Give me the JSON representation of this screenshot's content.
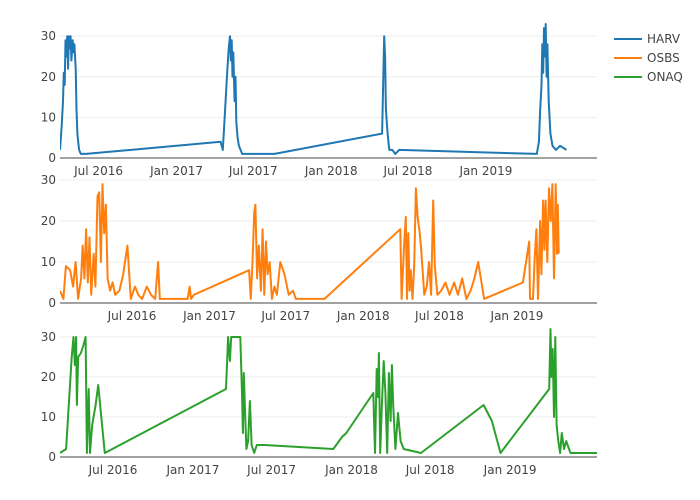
{
  "chart_data": [
    {
      "type": "line",
      "panel": "top",
      "series_name": "HARV",
      "color": "#1f77b4",
      "ylim": [
        0,
        33
      ],
      "yticks": [
        0,
        10,
        20,
        30
      ],
      "xlim": [
        "2016-04-01",
        "2019-09-20"
      ],
      "xticks": [
        {
          "date": "2016-07-01",
          "label": "Jul 2016"
        },
        {
          "date": "2017-01-01",
          "label": "Jan 2017"
        },
        {
          "date": "2017-07-01",
          "label": "Jul 2017"
        },
        {
          "date": "2018-01-01",
          "label": "Jan 2018"
        },
        {
          "date": "2018-07-01",
          "label": "Jul 2018"
        },
        {
          "date": "2019-01-01",
          "label": "Jan 2019"
        }
      ],
      "points": [
        [
          "2016-04-01",
          2
        ],
        [
          "2016-04-05",
          8
        ],
        [
          "2016-04-08",
          14
        ],
        [
          "2016-04-10",
          21
        ],
        [
          "2016-04-12",
          18
        ],
        [
          "2016-04-14",
          29
        ],
        [
          "2016-04-16",
          25
        ],
        [
          "2016-04-18",
          30
        ],
        [
          "2016-04-20",
          22
        ],
        [
          "2016-04-22",
          30
        ],
        [
          "2016-04-24",
          27
        ],
        [
          "2016-04-26",
          30
        ],
        [
          "2016-04-28",
          24
        ],
        [
          "2016-05-01",
          29
        ],
        [
          "2016-05-03",
          26
        ],
        [
          "2016-05-05",
          28
        ],
        [
          "2016-05-08",
          22
        ],
        [
          "2016-05-10",
          12
        ],
        [
          "2016-05-12",
          6
        ],
        [
          "2016-05-14",
          4
        ],
        [
          "2016-05-16",
          2
        ],
        [
          "2016-05-20",
          1
        ],
        [
          "2016-06-01",
          1
        ],
        [
          "2017-04-15",
          4
        ],
        [
          "2017-04-20",
          2
        ],
        [
          "2017-04-25",
          11
        ],
        [
          "2017-05-01",
          22
        ],
        [
          "2017-05-04",
          27
        ],
        [
          "2017-05-07",
          30
        ],
        [
          "2017-05-09",
          24
        ],
        [
          "2017-05-11",
          29
        ],
        [
          "2017-05-13",
          20
        ],
        [
          "2017-05-15",
          26
        ],
        [
          "2017-05-18",
          14
        ],
        [
          "2017-05-20",
          20
        ],
        [
          "2017-05-22",
          9
        ],
        [
          "2017-05-25",
          5
        ],
        [
          "2017-05-28",
          3
        ],
        [
          "2017-06-05",
          1
        ],
        [
          "2017-08-20",
          1
        ],
        [
          "2018-05-01",
          6
        ],
        [
          "2018-05-04",
          21
        ],
        [
          "2018-05-06",
          30
        ],
        [
          "2018-05-08",
          25
        ],
        [
          "2018-05-10",
          12
        ],
        [
          "2018-05-14",
          6
        ],
        [
          "2018-05-18",
          2
        ],
        [
          "2018-05-25",
          2
        ],
        [
          "2018-06-01",
          1
        ],
        [
          "2018-06-10",
          2
        ],
        [
          "2019-05-01",
          1
        ],
        [
          "2019-05-06",
          4
        ],
        [
          "2019-05-09",
          12
        ],
        [
          "2019-05-12",
          18
        ],
        [
          "2019-05-14",
          28
        ],
        [
          "2019-05-16",
          21
        ],
        [
          "2019-05-18",
          32
        ],
        [
          "2019-05-20",
          25
        ],
        [
          "2019-05-22",
          33
        ],
        [
          "2019-05-24",
          20
        ],
        [
          "2019-05-26",
          28
        ],
        [
          "2019-05-29",
          14
        ],
        [
          "2019-06-02",
          6
        ],
        [
          "2019-06-07",
          3
        ],
        [
          "2019-06-15",
          2
        ],
        [
          "2019-06-25",
          3
        ],
        [
          "2019-07-10",
          2
        ]
      ]
    },
    {
      "type": "line",
      "panel": "middle",
      "series_name": "OSBS",
      "color": "#ff7f0e",
      "ylim": [
        0,
        30
      ],
      "yticks": [
        0,
        10,
        20,
        30
      ],
      "xlim": [
        "2016-01-12",
        "2019-07-10"
      ],
      "xticks": [
        {
          "date": "2016-07-01",
          "label": "Jul 2016"
        },
        {
          "date": "2017-01-01",
          "label": "Jan 2017"
        },
        {
          "date": "2017-07-01",
          "label": "Jul 2017"
        },
        {
          "date": "2018-01-01",
          "label": "Jan 2018"
        },
        {
          "date": "2018-07-01",
          "label": "Jul 2018"
        },
        {
          "date": "2019-01-01",
          "label": "Jan 2019"
        }
      ],
      "points": [
        [
          "2016-01-12",
          3
        ],
        [
          "2016-01-20",
          1
        ],
        [
          "2016-01-26",
          9
        ],
        [
          "2016-02-05",
          8
        ],
        [
          "2016-02-12",
          4
        ],
        [
          "2016-02-18",
          10
        ],
        [
          "2016-02-24",
          1
        ],
        [
          "2016-03-02",
          6
        ],
        [
          "2016-03-06",
          14
        ],
        [
          "2016-03-10",
          6
        ],
        [
          "2016-03-14",
          18
        ],
        [
          "2016-03-18",
          5
        ],
        [
          "2016-03-22",
          16
        ],
        [
          "2016-03-26",
          2
        ],
        [
          "2016-04-01",
          12
        ],
        [
          "2016-04-05",
          4
        ],
        [
          "2016-04-10",
          26
        ],
        [
          "2016-04-14",
          27
        ],
        [
          "2016-04-18",
          10
        ],
        [
          "2016-04-22",
          29
        ],
        [
          "2016-04-26",
          17
        ],
        [
          "2016-04-30",
          24
        ],
        [
          "2016-05-04",
          6
        ],
        [
          "2016-05-10",
          3
        ],
        [
          "2016-05-16",
          5
        ],
        [
          "2016-05-22",
          2
        ],
        [
          "2016-06-01",
          3
        ],
        [
          "2016-06-10",
          7
        ],
        [
          "2016-06-20",
          14
        ],
        [
          "2016-06-28",
          1
        ],
        [
          "2016-07-08",
          4
        ],
        [
          "2016-07-16",
          2
        ],
        [
          "2016-07-25",
          1
        ],
        [
          "2016-08-05",
          4
        ],
        [
          "2016-08-15",
          2
        ],
        [
          "2016-08-25",
          1
        ],
        [
          "2016-09-01",
          10
        ],
        [
          "2016-09-05",
          1
        ],
        [
          "2016-10-01",
          1
        ],
        [
          "2016-11-10",
          1
        ],
        [
          "2016-11-15",
          4
        ],
        [
          "2016-11-18",
          1
        ],
        [
          "2016-11-25",
          2
        ],
        [
          "2017-04-05",
          8
        ],
        [
          "2017-04-09",
          1
        ],
        [
          "2017-04-13",
          10
        ],
        [
          "2017-04-17",
          22
        ],
        [
          "2017-04-20",
          24
        ],
        [
          "2017-04-24",
          6
        ],
        [
          "2017-04-28",
          14
        ],
        [
          "2017-05-03",
          3
        ],
        [
          "2017-05-07",
          18
        ],
        [
          "2017-05-11",
          2
        ],
        [
          "2017-05-15",
          15
        ],
        [
          "2017-05-19",
          7
        ],
        [
          "2017-05-24",
          10
        ],
        [
          "2017-05-29",
          1
        ],
        [
          "2017-06-04",
          4
        ],
        [
          "2017-06-10",
          2
        ],
        [
          "2017-06-18",
          10
        ],
        [
          "2017-06-28",
          7
        ],
        [
          "2017-07-08",
          2
        ],
        [
          "2017-07-18",
          3
        ],
        [
          "2017-07-25",
          1
        ],
        [
          "2017-08-15",
          1
        ],
        [
          "2017-10-01",
          1
        ],
        [
          "2018-03-30",
          18
        ],
        [
          "2018-04-02",
          1
        ],
        [
          "2018-04-08",
          14
        ],
        [
          "2018-04-12",
          21
        ],
        [
          "2018-04-15",
          1
        ],
        [
          "2018-04-18",
          17
        ],
        [
          "2018-04-21",
          3
        ],
        [
          "2018-04-24",
          8
        ],
        [
          "2018-04-28",
          1
        ],
        [
          "2018-05-02",
          9
        ],
        [
          "2018-05-06",
          28
        ],
        [
          "2018-05-10",
          21
        ],
        [
          "2018-05-14",
          18
        ],
        [
          "2018-05-18",
          14
        ],
        [
          "2018-05-22",
          8
        ],
        [
          "2018-05-26",
          2
        ],
        [
          "2018-06-01",
          4
        ],
        [
          "2018-06-06",
          10
        ],
        [
          "2018-06-11",
          2
        ],
        [
          "2018-06-16",
          25
        ],
        [
          "2018-06-20",
          9
        ],
        [
          "2018-06-26",
          2
        ],
        [
          "2018-07-05",
          3
        ],
        [
          "2018-07-15",
          5
        ],
        [
          "2018-07-25",
          2
        ],
        [
          "2018-08-05",
          5
        ],
        [
          "2018-08-14",
          2
        ],
        [
          "2018-08-24",
          6
        ],
        [
          "2018-09-03",
          1
        ],
        [
          "2018-09-13",
          3
        ],
        [
          "2018-09-22",
          6
        ],
        [
          "2018-10-01",
          10
        ],
        [
          "2018-10-15",
          1
        ],
        [
          "2019-01-15",
          5
        ],
        [
          "2019-01-30",
          15
        ],
        [
          "2019-02-01",
          1
        ],
        [
          "2019-02-08",
          1
        ],
        [
          "2019-02-12",
          11
        ],
        [
          "2019-02-16",
          18
        ],
        [
          "2019-02-20",
          1
        ],
        [
          "2019-02-25",
          20
        ],
        [
          "2019-02-28",
          7
        ],
        [
          "2019-03-04",
          25
        ],
        [
          "2019-03-07",
          13
        ],
        [
          "2019-03-10",
          25
        ],
        [
          "2019-03-14",
          10
        ],
        [
          "2019-03-18",
          28
        ],
        [
          "2019-03-22",
          20
        ],
        [
          "2019-03-26",
          29
        ],
        [
          "2019-03-30",
          6
        ],
        [
          "2019-04-03",
          29
        ],
        [
          "2019-04-06",
          12
        ],
        [
          "2019-04-08",
          24
        ],
        [
          "2019-04-10",
          12
        ]
      ]
    },
    {
      "type": "line",
      "panel": "bottom",
      "series_name": "ONAQ",
      "color": "#2ca02c",
      "ylim": [
        0,
        33
      ],
      "yticks": [
        0,
        10,
        20,
        30
      ],
      "xlim": [
        "2016-03-01",
        "2019-07-20"
      ],
      "xticks": [
        {
          "date": "2016-07-01",
          "label": "Jul 2016"
        },
        {
          "date": "2017-01-01",
          "label": "Jan 2017"
        },
        {
          "date": "2017-07-01",
          "label": "Jul 2017"
        },
        {
          "date": "2018-01-01",
          "label": "Jan 2018"
        },
        {
          "date": "2018-07-01",
          "label": "Jul 2018"
        },
        {
          "date": "2019-01-01",
          "label": "Jan 2019"
        }
      ],
      "points": [
        [
          "2016-03-01",
          1
        ],
        [
          "2016-03-15",
          2
        ],
        [
          "2016-03-28",
          25
        ],
        [
          "2016-04-01",
          30
        ],
        [
          "2016-04-04",
          23
        ],
        [
          "2016-04-07",
          30
        ],
        [
          "2016-04-09",
          13
        ],
        [
          "2016-04-12",
          25
        ],
        [
          "2016-04-18",
          26
        ],
        [
          "2016-04-24",
          28
        ],
        [
          "2016-04-29",
          30
        ],
        [
          "2016-05-02",
          1
        ],
        [
          "2016-05-06",
          17
        ],
        [
          "2016-05-09",
          1
        ],
        [
          "2016-05-14",
          8
        ],
        [
          "2016-05-22",
          13
        ],
        [
          "2016-05-28",
          18
        ],
        [
          "2016-06-12",
          1
        ],
        [
          "2017-03-18",
          17
        ],
        [
          "2017-03-23",
          30
        ],
        [
          "2017-03-27",
          24
        ],
        [
          "2017-03-30",
          30
        ],
        [
          "2017-04-20",
          30
        ],
        [
          "2017-04-24",
          16
        ],
        [
          "2017-04-26",
          6
        ],
        [
          "2017-04-28",
          21
        ],
        [
          "2017-05-01",
          11
        ],
        [
          "2017-05-04",
          2
        ],
        [
          "2017-05-08",
          4
        ],
        [
          "2017-05-12",
          14
        ],
        [
          "2017-05-16",
          3
        ],
        [
          "2017-05-22",
          1
        ],
        [
          "2017-05-28",
          3
        ],
        [
          "2017-06-15",
          3
        ],
        [
          "2017-11-20",
          2
        ],
        [
          "2017-12-10",
          5
        ],
        [
          "2017-12-20",
          6
        ],
        [
          "2018-02-20",
          16
        ],
        [
          "2018-02-24",
          1
        ],
        [
          "2018-02-28",
          22
        ],
        [
          "2018-03-03",
          15
        ],
        [
          "2018-03-05",
          26
        ],
        [
          "2018-03-08",
          1
        ],
        [
          "2018-03-12",
          13
        ],
        [
          "2018-03-16",
          24
        ],
        [
          "2018-03-20",
          16
        ],
        [
          "2018-03-24",
          1
        ],
        [
          "2018-03-28",
          21
        ],
        [
          "2018-04-01",
          9
        ],
        [
          "2018-04-04",
          23
        ],
        [
          "2018-04-07",
          13
        ],
        [
          "2018-04-12",
          2
        ],
        [
          "2018-04-18",
          11
        ],
        [
          "2018-04-24",
          4
        ],
        [
          "2018-05-01",
          2
        ],
        [
          "2018-06-10",
          1
        ],
        [
          "2018-11-01",
          13
        ],
        [
          "2018-11-20",
          9
        ],
        [
          "2018-12-10",
          1
        ],
        [
          "2019-04-01",
          17
        ],
        [
          "2019-04-04",
          32
        ],
        [
          "2019-04-06",
          20
        ],
        [
          "2019-04-09",
          27
        ],
        [
          "2019-04-12",
          10
        ],
        [
          "2019-04-15",
          30
        ],
        [
          "2019-04-18",
          8
        ],
        [
          "2019-04-22",
          4
        ],
        [
          "2019-04-26",
          1
        ],
        [
          "2019-04-30",
          6
        ],
        [
          "2019-05-05",
          2
        ],
        [
          "2019-05-10",
          4
        ],
        [
          "2019-05-20",
          1
        ],
        [
          "2019-07-20",
          1
        ]
      ]
    }
  ],
  "legend": {
    "position": "top-right",
    "items": [
      {
        "label": "HARV",
        "color": "#1f77b4"
      },
      {
        "label": "OSBS",
        "color": "#ff7f0e"
      },
      {
        "label": "ONAQ",
        "color": "#2ca02c"
      }
    ]
  },
  "style": {
    "axis_line_color": "#444444",
    "tick_label_color": "#444444",
    "grid_color": "#eeeeee",
    "background": "#ffffff"
  }
}
